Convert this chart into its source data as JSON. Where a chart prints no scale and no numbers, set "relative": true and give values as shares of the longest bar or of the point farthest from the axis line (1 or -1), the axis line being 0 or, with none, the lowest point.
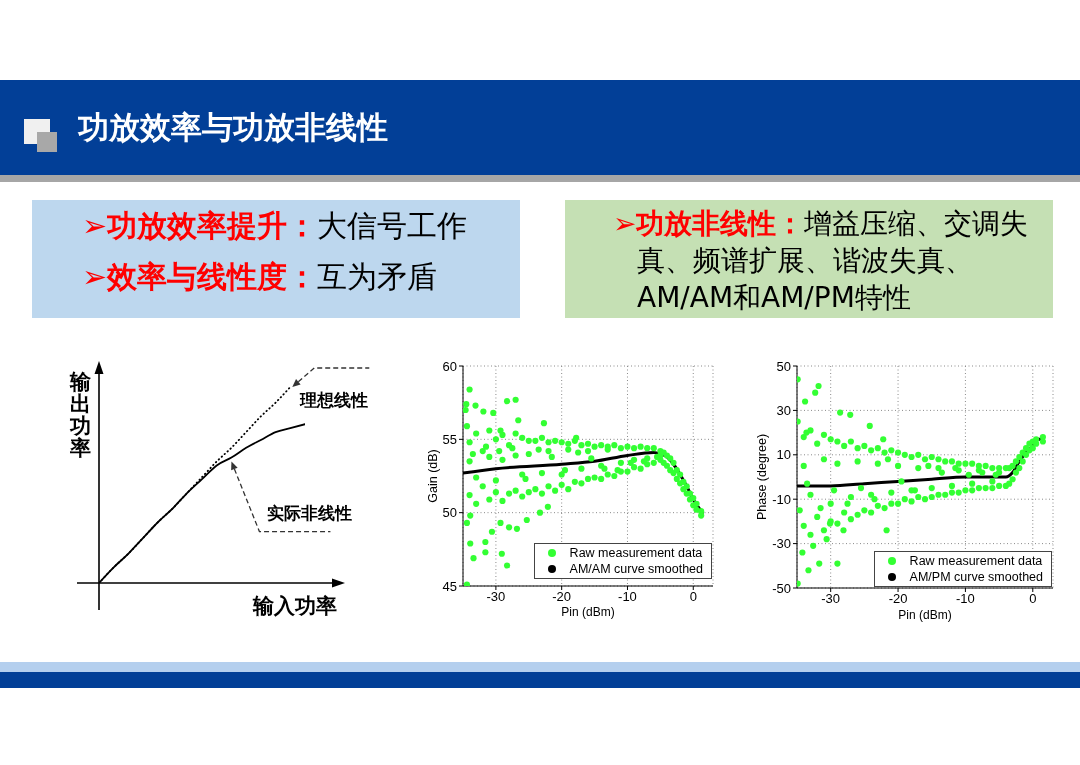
{
  "chart_data": [
    {
      "type": "other",
      "title": "功放效率与功放非线性",
      "annotations": [
        "➢功放效率提升：大信号工作",
        "➢效率与线性度：互为矛盾",
        "➢功放非线性：增益压缩、交调失真、频谱扩展、谐波失真、AM/AM和AM/PM特性"
      ]
    },
    {
      "type": "line",
      "xlabel": "输入功率",
      "ylabel": "输出功率",
      "relative": true,
      "categories": [
        null,
        null,
        null,
        null,
        null,
        null,
        null,
        null,
        null,
        null,
        null,
        null,
        null,
        null,
        null
      ],
      "series": [
        {
          "name": "理想线性",
          "color": "#000000",
          "line_style": "dotted",
          "values": [
            0,
            0.08,
            0.15,
            0.23,
            0.31,
            0.38,
            0.46,
            0.54,
            0.62,
            0.69,
            0.77,
            0.85,
            0.92,
            1,
            null
          ]
        },
        {
          "name": "实际非线性",
          "color": "#000000",
          "line_style": "solid",
          "values": [
            0,
            0.08,
            0.15,
            0.23,
            0.31,
            0.38,
            0.46,
            0.53,
            0.6,
            0.64,
            0.69,
            0.73,
            0.77,
            0.79,
            0.81
          ]
        }
      ]
    },
    {
      "type": "scatter",
      "xlabel": "Pin (dBm)",
      "ylabel": "Gain (dB)",
      "xlim": [
        -35,
        3
      ],
      "xticks": [
        -30,
        -20,
        -10,
        0
      ],
      "ylim": [
        45,
        60
      ],
      "yticks": [
        45,
        50,
        55,
        60
      ],
      "grid": true,
      "legend": "bottom right",
      "series": [
        {
          "name": "Raw measurement data",
          "color": "#33ff33",
          "marker": "circle",
          "x": [
            -34,
            -34,
            -34,
            -33,
            -33,
            -33,
            -32,
            -32,
            -31,
            -31,
            -31,
            -30,
            -30,
            -30,
            -29,
            -29,
            -29,
            -28,
            -28,
            -27,
            -27,
            -27,
            -26,
            -26,
            -26,
            -25,
            -25,
            -25,
            -24,
            -24,
            -23,
            -23,
            -23,
            -22,
            -22,
            -22,
            -21,
            -21,
            -20,
            -20,
            -20,
            -19,
            -19,
            -19,
            -18,
            -18,
            -17,
            -17,
            -17,
            -16,
            -16,
            -16,
            -15,
            -15,
            -14,
            -14,
            -14,
            -13,
            -13,
            -13,
            -12,
            -12,
            -11,
            -11,
            -11,
            -10,
            -10,
            -9,
            -9,
            -9,
            -8,
            -8,
            -7,
            -7,
            -7,
            -6,
            -6,
            -5,
            -5,
            -5,
            -4.5,
            -4.5,
            -4,
            -4,
            -3.5,
            -3.5,
            -3,
            -3,
            -2.5,
            -2.5,
            -2,
            -2,
            -1.5,
            -1.5,
            -1,
            -1,
            -0.5,
            -0.5,
            0,
            0,
            0.5,
            0.5,
            1.2,
            1.2,
            -34.0,
            -34.5,
            -34.6,
            -33.1,
            -28.3,
            -27.0,
            -31.9,
            -30.4,
            -26.6,
            -22.7,
            -34.4,
            -29.3,
            -17.8,
            -34.4,
            -33.9,
            -31.6,
            -33.4,
            -31.6,
            -28.3,
            -29.1,
            -30.6,
            -26.8,
            -25.3,
            -29.3,
            -23.3,
            -22.1,
            -34.4,
            -28.0,
            -33.9,
            -33.5,
            -31.5,
            -29.5,
            -27.5,
            -25.5,
            -23.5,
            -21.5,
            -19.5,
            -17.5,
            -15.5,
            -13.5,
            -11.5,
            -9.5,
            -7.5,
            -5.5
          ],
          "values": [
            54.8,
            51.2,
            53.5,
            55.4,
            50.6,
            52.4,
            54.2,
            51.8,
            55.6,
            50.9,
            53.8,
            55.0,
            51.4,
            52.2,
            55.3,
            50.8,
            53.6,
            54.6,
            51.3,
            55.4,
            51.5,
            53.9,
            55.1,
            51.1,
            52.6,
            54.9,
            51.4,
            54.0,
            54.9,
            51.6,
            55.1,
            51.3,
            52.7,
            54.8,
            51.8,
            54.2,
            54.9,
            51.5,
            54.8,
            51.9,
            52.6,
            54.7,
            51.6,
            54.3,
            54.9,
            52.1,
            54.6,
            52.0,
            53.0,
            54.7,
            52.3,
            54.2,
            54.5,
            52.4,
            54.6,
            52.3,
            53.2,
            54.5,
            52.6,
            54.3,
            54.6,
            52.5,
            54.4,
            52.8,
            53.4,
            54.5,
            52.8,
            54.4,
            53.1,
            53.6,
            54.5,
            53.0,
            54.4,
            53.3,
            53.7,
            54.4,
            53.4,
            54.2,
            53.6,
            53.9,
            54.1,
            53.4,
            53.9,
            53.2,
            53.7,
            52.9,
            53.4,
            52.7,
            52.9,
            52.3,
            52.6,
            52.0,
            52.1,
            51.6,
            51.8,
            51.3,
            51.3,
            50.9,
            51.0,
            50.5,
            50.6,
            50.2,
            50.1,
            49.8,
            58.4,
            57.4,
            57.0,
            57.3,
            57.6,
            57.7,
            56.9,
            56.8,
            56.3,
            56.1,
            55.9,
            55.6,
            55.1,
            49.3,
            49.8,
            48.0,
            46.9,
            47.3,
            46.4,
            47.2,
            48.7,
            48.9,
            49.5,
            49.3,
            50.0,
            50.4,
            45.1,
            49.0,
            47.9,
            54.0,
            54.5,
            54.2,
            54.4,
            52.3,
            54.3,
            53.8,
            52.9,
            54.1,
            53.7,
            53.0,
            52.9,
            53.4,
            53.5,
            53.8
          ]
        },
        {
          "name": "AM/AM curve smoothed",
          "type": "line",
          "color": "#000000",
          "x": [
            -35,
            -30,
            -20,
            -15,
            -10,
            -6,
            -5,
            -4,
            -3,
            -2,
            -1,
            0,
            1.4
          ],
          "values": [
            52.7,
            53.0,
            53.3,
            53.5,
            53.9,
            54.1,
            54.0,
            53.8,
            53.3,
            52.6,
            51.8,
            50.9,
            50.0
          ]
        }
      ]
    },
    {
      "type": "scatter",
      "xlabel": "Pin (dBm)",
      "ylabel": "Phase (degree)",
      "xlim": [
        -35,
        3
      ],
      "xticks": [
        -30,
        -20,
        -10,
        0
      ],
      "ylim": [
        -50,
        50
      ],
      "yticks": [
        -50,
        -30,
        -10,
        10,
        30,
        50
      ],
      "grid": true,
      "legend": "bottom right",
      "series": [
        {
          "name": "Raw measurement data",
          "color": "#33ff33",
          "marker": "circle",
          "x": [
            -34,
            -34,
            -34,
            -33,
            -33,
            -33,
            -32,
            -32,
            -31,
            -31,
            -31,
            -30,
            -30,
            -30,
            -29,
            -29,
            -29,
            -28,
            -28,
            -27,
            -27,
            -27,
            -26,
            -26,
            -26,
            -25,
            -25,
            -24,
            -24,
            -24,
            -23,
            -23,
            -23,
            -22,
            -22,
            -21,
            -21,
            -21,
            -20,
            -20,
            -20,
            -19,
            -19,
            -18,
            -18,
            -18,
            -17,
            -17,
            -17,
            -16,
            -16,
            -15,
            -15,
            -15,
            -14,
            -14,
            -14,
            -13,
            -13,
            -12,
            -12,
            -12,
            -11,
            -11,
            -11,
            -10,
            -10,
            -9,
            -9,
            -9,
            -8,
            -8,
            -8,
            -7,
            -7,
            -6,
            -6,
            -6,
            -5,
            -5,
            -5,
            -4,
            -4,
            -3.5,
            -3.5,
            -3,
            -3,
            -2.5,
            -2.5,
            -2,
            -2,
            -1.5,
            -1.5,
            -1,
            -1,
            -0.5,
            -0.5,
            0,
            0,
            0.5,
            0.5,
            1.5,
            1.5,
            -33.5,
            -31.5,
            -29.5,
            -27.5,
            -25.5,
            -23.5,
            -21.5,
            -19.5,
            -17.5,
            -15.5,
            -13.5,
            -11.5,
            -9.5,
            -7.5,
            -5.5,
            -34.9,
            -31.8,
            -33.8,
            -32.3,
            -34.9,
            -28.6,
            -27.1,
            -31.7,
            -29.0,
            -34.9,
            -33.3,
            -34.2,
            -32.6,
            -30.6,
            -28.1,
            -22.2,
            -21.7,
            -24.2,
            -30.1,
            -34.6,
            -33.6
          ],
          "values": [
            18,
            -22,
            5,
            21,
            -26,
            -8,
            15,
            -18,
            19,
            -24,
            8,
            17,
            -20,
            -12,
            16,
            -21,
            6,
            14,
            -16,
            16,
            -19,
            -9,
            13,
            -17,
            7,
            14,
            -15,
            12,
            -16,
            -8,
            13,
            -13,
            6,
            11,
            -14,
            12,
            -12,
            -7,
            11,
            -12,
            5,
            10,
            -10,
            9,
            -11,
            -6,
            10,
            -9,
            4,
            8,
            -10,
            9,
            -9,
            -5,
            8,
            -8,
            4,
            7,
            -8,
            7,
            -7,
            -4,
            6,
            -7,
            3,
            6,
            -6,
            6,
            -6,
            -3,
            5,
            -5,
            3,
            5,
            -5,
            4,
            -5,
            -2,
            4,
            -4,
            2,
            4,
            -4,
            4,
            -3,
            5,
            -1,
            7,
            2,
            9,
            4,
            11,
            7,
            13,
            10,
            15,
            12,
            16,
            13,
            17,
            15,
            18,
            16,
            -3,
            -14,
            -6,
            -12,
            -5,
            -10,
            8,
            -2,
            -6,
            5,
            2,
            4,
            1,
            2,
            1,
            44,
            41,
            34,
            38,
            25,
            29,
            28,
            -39,
            -39,
            -48,
            -42,
            -34,
            -31,
            -28,
            -24,
            17,
            -24,
            23,
            -21,
            -15,
            20
          ]
        },
        {
          "name": "AM/PM curve smoothed",
          "type": "line",
          "color": "#000000",
          "x": [
            -35,
            -30,
            -25,
            -20,
            -15,
            -10,
            -7,
            -5,
            -4,
            -3,
            -2,
            -1,
            0,
            0.7,
            1.6
          ],
          "values": [
            -4,
            -4,
            -3,
            -2,
            -1,
            0,
            0,
            0,
            0,
            2,
            7,
            11,
            14,
            17,
            17
          ]
        }
      ]
    }
  ]
}
